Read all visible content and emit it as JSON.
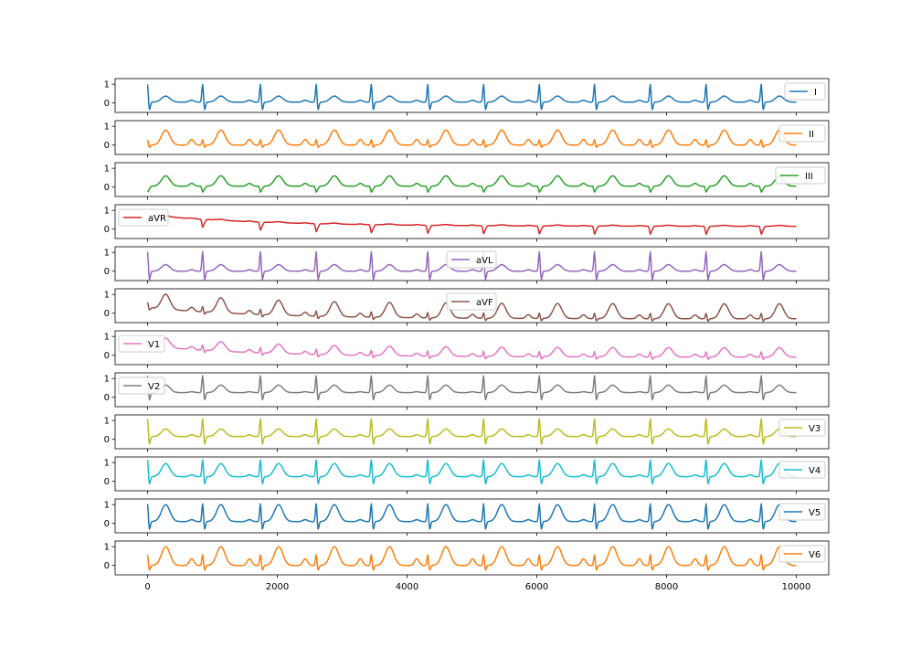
{
  "chart_data": {
    "type": "line",
    "subplots": 12,
    "shared_x": true,
    "xlim": [
      -500,
      10500
    ],
    "ylim": [
      -0.5,
      1.3
    ],
    "x_ticks": [
      0,
      2000,
      4000,
      6000,
      8000,
      10000
    ],
    "y_ticks": [
      0,
      1
    ],
    "grid": false,
    "beats": [
      0,
      850,
      1740,
      2600,
      3450,
      4320,
      5180,
      6040,
      6890,
      7750,
      8610,
      9460
    ],
    "series": [
      {
        "name": "I",
        "color": "#1f77b4",
        "legend": "right",
        "baseline": 0.05,
        "drift": 0.0,
        "qrs": 1.0,
        "t": 0.32,
        "p": 0.1
      },
      {
        "name": "II",
        "color": "#ff7f0e",
        "legend": "right",
        "baseline": 0.0,
        "drift": 0.0,
        "qrs": 0.3,
        "t": 0.8,
        "p": 0.3
      },
      {
        "name": "III",
        "color": "#2ca02c",
        "legend": "right",
        "baseline": 0.05,
        "drift": 0.0,
        "qrs": -0.3,
        "t": 0.55,
        "p": 0.15
      },
      {
        "name": "aVR",
        "color": "#d62728",
        "legend": "left",
        "baseline": 0.15,
        "drift": 0.6,
        "qrs": -0.4,
        "t": 0.05,
        "p": 0.03
      },
      {
        "name": "aVL",
        "color": "#9467bd",
        "legend": "center",
        "baseline": 0.0,
        "drift": 0.0,
        "qrs": 1.1,
        "t": 0.35,
        "p": 0.08
      },
      {
        "name": "aVF",
        "color": "#8c564b",
        "legend": "center",
        "baseline": -0.3,
        "drift": 0.6,
        "qrs": 0.3,
        "t": 0.8,
        "p": 0.2
      },
      {
        "name": "V1",
        "color": "#e377c2",
        "legend": "left",
        "baseline": -0.1,
        "drift": 0.6,
        "qrs": 0.3,
        "t": 0.5,
        "p": 0.15
      },
      {
        "name": "V2",
        "color": "#7f7f7f",
        "legend": "left",
        "baseline": 0.25,
        "drift": 0.0,
        "qrs": 0.95,
        "t": 0.4,
        "p": 0.05
      },
      {
        "name": "V3",
        "color": "#bcbd22",
        "legend": "right",
        "baseline": 0.15,
        "drift": 0.0,
        "qrs": 1.0,
        "t": 0.4,
        "p": 0.1
      },
      {
        "name": "V4",
        "color": "#17becf",
        "legend": "right",
        "baseline": 0.25,
        "drift": 0.0,
        "qrs": 0.95,
        "t": 0.7,
        "p": 0.1
      },
      {
        "name": "V5",
        "color": "#1f77b4",
        "legend": "right",
        "baseline": 0.1,
        "drift": 0.0,
        "qrs": 1.0,
        "t": 0.9,
        "p": 0.1
      },
      {
        "name": "V6",
        "color": "#ff7f0e",
        "legend": "right",
        "baseline": 0.0,
        "drift": 0.0,
        "qrs": 0.6,
        "t": 1.0,
        "p": 0.35
      }
    ]
  }
}
